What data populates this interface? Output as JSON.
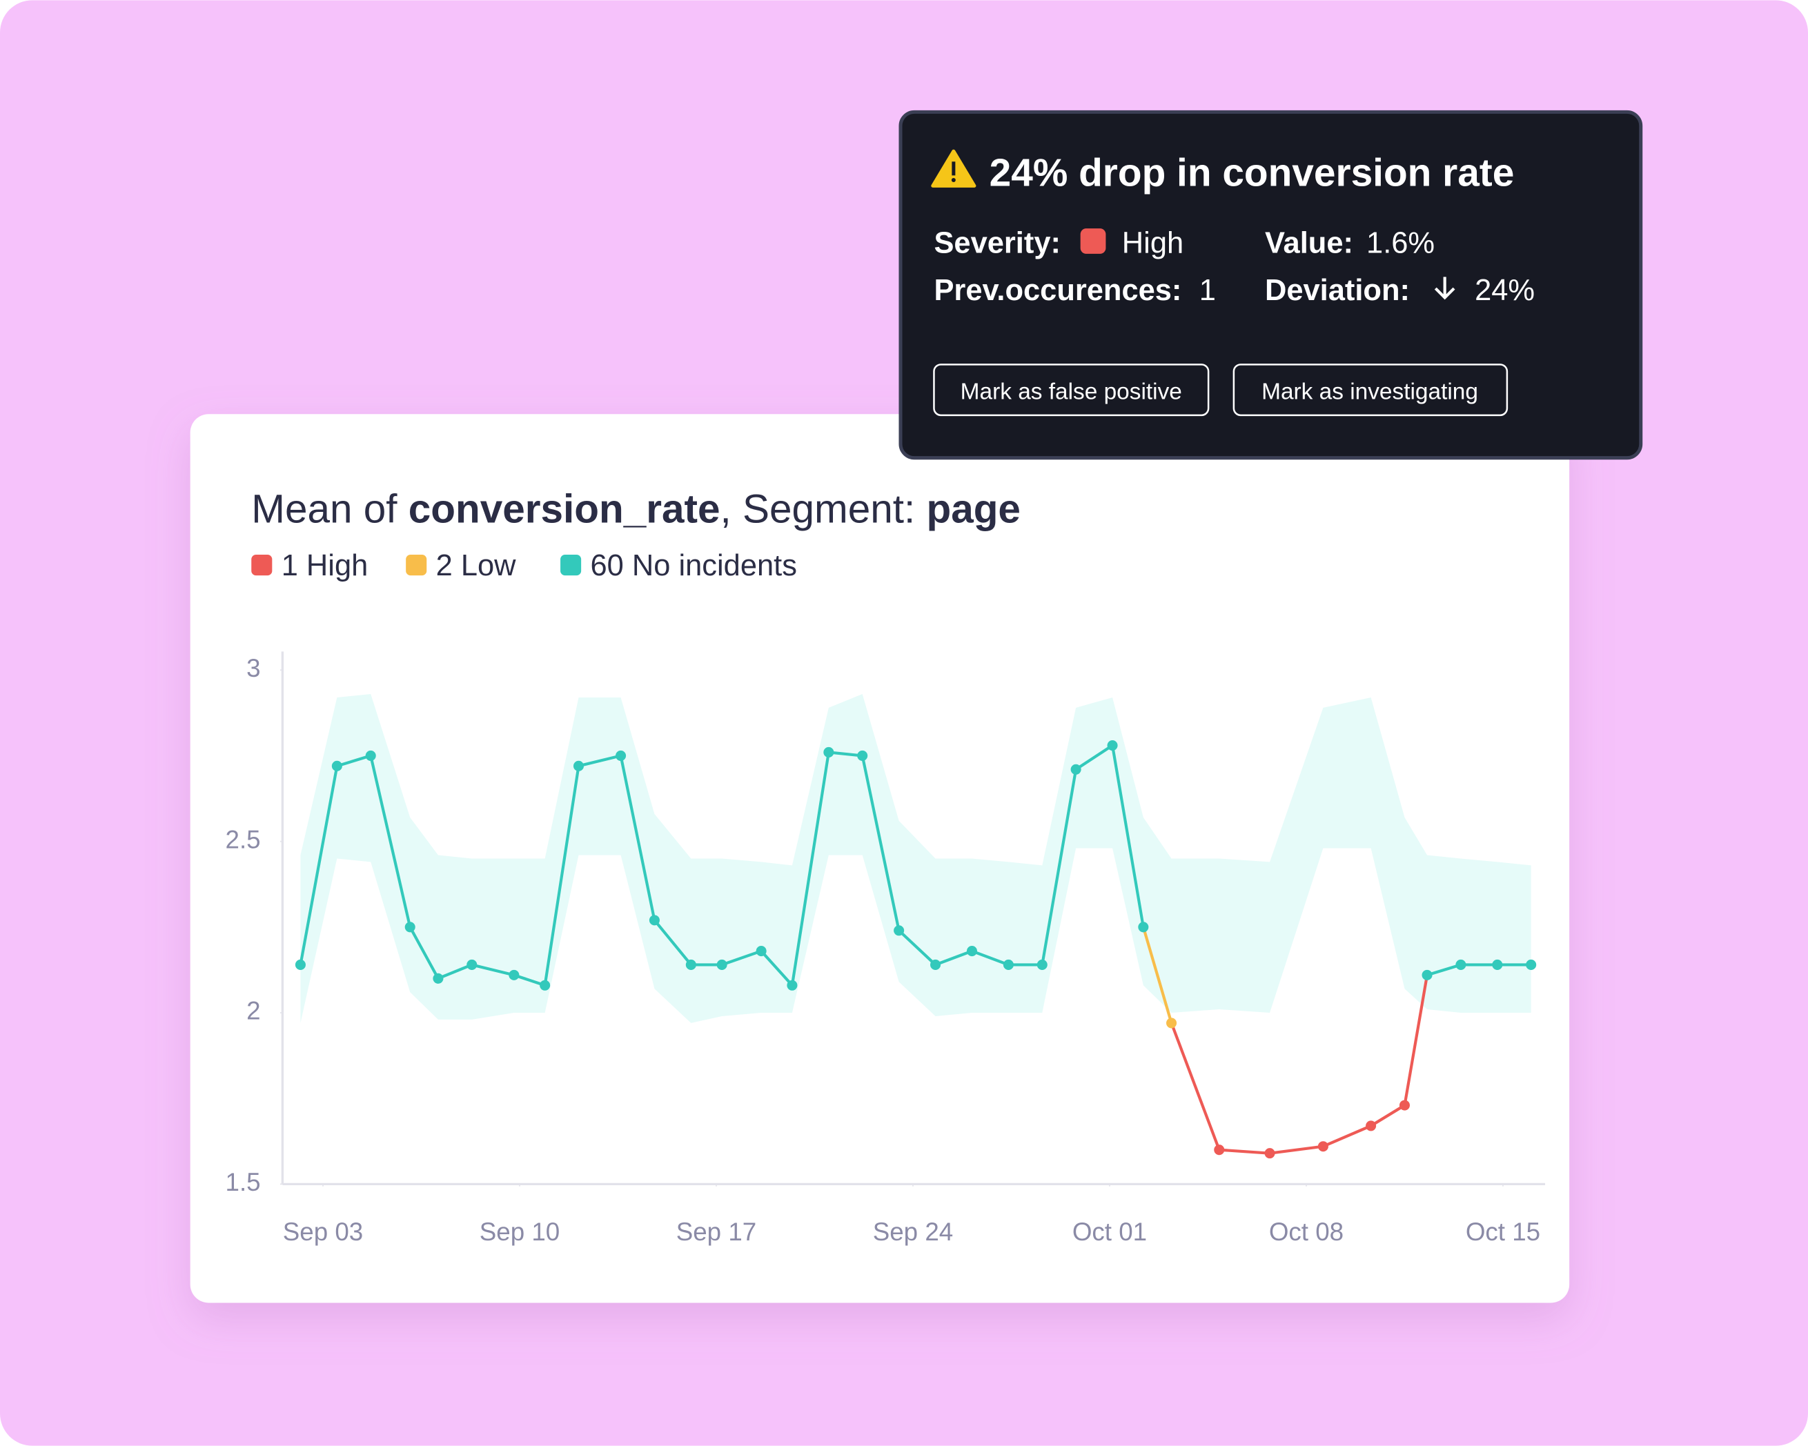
{
  "chart_data": {
    "type": "line",
    "title_parts": [
      {
        "text": "Mean of ",
        "bold": false
      },
      {
        "text": "conversion_rate",
        "bold": true
      },
      {
        "text": ", Segment: ",
        "bold": false
      },
      {
        "text": "page",
        "bold": true
      }
    ],
    "legend": [
      {
        "label": "1 High",
        "color": "#ee5a55"
      },
      {
        "label": "2 Low",
        "color": "#f8bd4a"
      },
      {
        "label": "60 No incidents",
        "color": "#33c9bb"
      }
    ],
    "x": [
      -0.8,
      0.5,
      1.7,
      3.1,
      4.1,
      5.3,
      6.8,
      7.9,
      9.1,
      10.6,
      11.8,
      13.1,
      14.2,
      15.6,
      16.7,
      18.0,
      19.2,
      20.5,
      21.8,
      23.1,
      24.4,
      25.6,
      26.8,
      28.1,
      29.2,
      30.2,
      31.9,
      33.7,
      35.6,
      37.3,
      38.5,
      39.3,
      40.5,
      41.8,
      43.0
    ],
    "values": [
      2.14,
      2.72,
      2.75,
      2.25,
      2.1,
      2.14,
      2.11,
      2.08,
      2.72,
      2.75,
      2.27,
      2.14,
      2.14,
      2.18,
      2.08,
      2.76,
      2.75,
      2.24,
      2.14,
      2.18,
      2.14,
      2.14,
      2.71,
      2.78,
      2.25,
      1.97,
      1.6,
      1.59,
      1.61,
      1.67,
      1.73,
      2.11,
      2.14,
      2.14,
      2.14
    ],
    "point_colors": [
      "#33c9bb",
      "#33c9bb",
      "#33c9bb",
      "#33c9bb",
      "#33c9bb",
      "#33c9bb",
      "#33c9bb",
      "#33c9bb",
      "#33c9bb",
      "#33c9bb",
      "#33c9bb",
      "#33c9bb",
      "#33c9bb",
      "#33c9bb",
      "#33c9bb",
      "#33c9bb",
      "#33c9bb",
      "#33c9bb",
      "#33c9bb",
      "#33c9bb",
      "#33c9bb",
      "#33c9bb",
      "#33c9bb",
      "#33c9bb",
      "#33c9bb",
      "#f8bd4a",
      "#ee5a55",
      "#ee5a55",
      "#ee5a55",
      "#ee5a55",
      "#ee5a55",
      "#33c9bb",
      "#33c9bb",
      "#33c9bb",
      "#33c9bb"
    ],
    "band_upper": [
      2.46,
      2.92,
      2.93,
      2.57,
      2.46,
      2.45,
      2.45,
      2.45,
      2.92,
      2.92,
      2.58,
      2.45,
      2.45,
      2.44,
      2.43,
      2.89,
      2.93,
      2.56,
      2.45,
      2.45,
      2.44,
      2.43,
      2.89,
      2.92,
      2.57,
      2.45,
      2.45,
      2.44,
      2.89,
      2.92,
      2.57,
      2.46,
      2.45,
      2.44,
      2.43
    ],
    "band_lower": [
      1.97,
      2.45,
      2.44,
      2.06,
      1.98,
      1.98,
      2.0,
      2.0,
      2.46,
      2.46,
      2.07,
      1.97,
      1.99,
      2.0,
      2.0,
      2.46,
      2.46,
      2.09,
      1.99,
      2.0,
      2.0,
      2.0,
      2.48,
      2.48,
      2.08,
      2.0,
      2.01,
      2.0,
      2.48,
      2.48,
      2.07,
      2.01,
      2.0,
      2.0,
      2.0
    ],
    "band_color": "#e6fbf9",
    "xlim": [
      -1.44,
      43.5
    ],
    "xticks": [
      {
        "value": 0,
        "label": "Sep 03"
      },
      {
        "value": 7,
        "label": "Sep 10"
      },
      {
        "value": 14,
        "label": "Sep 17"
      },
      {
        "value": 21,
        "label": "Sep 24"
      },
      {
        "value": 28,
        "label": "Oct 01"
      },
      {
        "value": 35,
        "label": "Oct 08"
      },
      {
        "value": 42,
        "label": "Oct 15"
      }
    ],
    "ylim": [
      1.5,
      3.054
    ],
    "yticks": [
      1.5,
      2,
      2.5,
      3
    ],
    "grid": false
  },
  "alert": {
    "title": "24% drop in conversion rate",
    "fields": [
      {
        "label": "Severity:",
        "value": "High"
      },
      {
        "label": "Value:",
        "value": "1.6%"
      },
      {
        "label": "Prev.occurences:",
        "value": "1"
      },
      {
        "label": "Deviation:",
        "value": "24%"
      }
    ],
    "buttons": [
      "Mark as false positive",
      "Mark as investigating"
    ]
  }
}
